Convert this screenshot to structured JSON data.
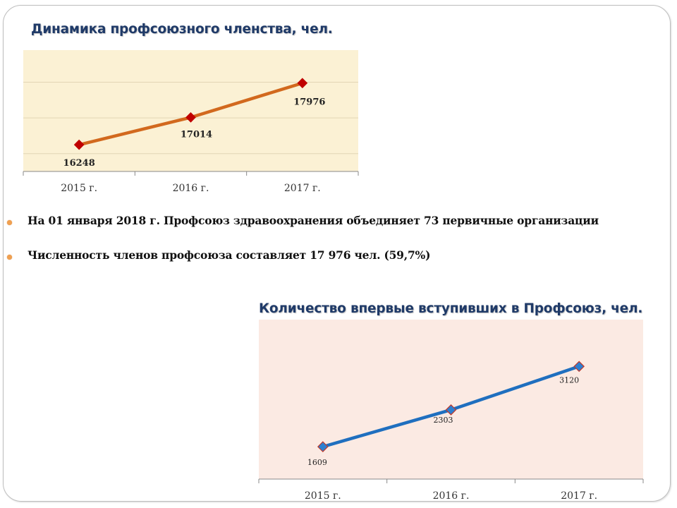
{
  "chart_data": [
    {
      "type": "line",
      "title": "Динамика профсоюзного членства, чел.",
      "categories": [
        "2015 г.",
        "2016 г.",
        "2017 г."
      ],
      "values": [
        16248,
        17014,
        17976
      ],
      "ylim": [
        15500,
        18900
      ],
      "grid": true,
      "colors": {
        "line": "#d2691e",
        "marker": "#c00000",
        "plot_bg": "#fbf1d4"
      }
    },
    {
      "type": "line",
      "title": "Количество впервые вступивших в Профсоюз, чел.",
      "categories": [
        "2015 г.",
        "2016 г.",
        "2017 г."
      ],
      "values": [
        1609,
        2303,
        3120
      ],
      "ylim": [
        1000,
        4000
      ],
      "grid": false,
      "colors": {
        "line": "#1f6fbf",
        "marker": "#2d7fd0",
        "marker_border": "#c0392b",
        "plot_bg": "#fbeae3"
      }
    }
  ],
  "bullets": [
    "На 01 января 2018 г. Профсоюз здравоохранения объединяет 73 первичные организации",
    "Численность членов профсоюза составляет 17 976 чел. (59,7%)"
  ]
}
